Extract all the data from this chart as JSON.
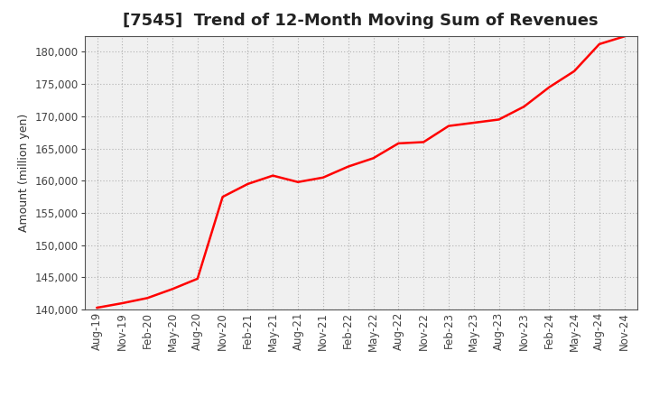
{
  "title": "[7545]  Trend of 12-Month Moving Sum of Revenues",
  "ylabel": "Amount (million yen)",
  "line_color": "#ff0000",
  "line_width": 1.8,
  "background_color": "#ffffff",
  "plot_bg_color": "#f0f0f0",
  "grid_color": "#888888",
  "ylim": [
    140000,
    182500
  ],
  "yticks": [
    140000,
    145000,
    150000,
    155000,
    160000,
    165000,
    170000,
    175000,
    180000
  ],
  "x_labels": [
    "Aug-19",
    "Nov-19",
    "Feb-20",
    "May-20",
    "Aug-20",
    "Nov-20",
    "Feb-21",
    "May-21",
    "Aug-21",
    "Nov-21",
    "Feb-22",
    "May-22",
    "Aug-22",
    "Nov-22",
    "Feb-23",
    "May-23",
    "Aug-23",
    "Nov-23",
    "Feb-24",
    "May-24",
    "Aug-24",
    "Nov-24"
  ],
  "values": [
    140300,
    141000,
    141800,
    143200,
    144800,
    157500,
    159500,
    160800,
    159800,
    160500,
    162200,
    163500,
    165800,
    166000,
    168500,
    169000,
    169500,
    171500,
    174500,
    177000,
    181200,
    182400
  ],
  "title_fontsize": 13,
  "ylabel_fontsize": 9,
  "tick_fontsize": 8.5
}
